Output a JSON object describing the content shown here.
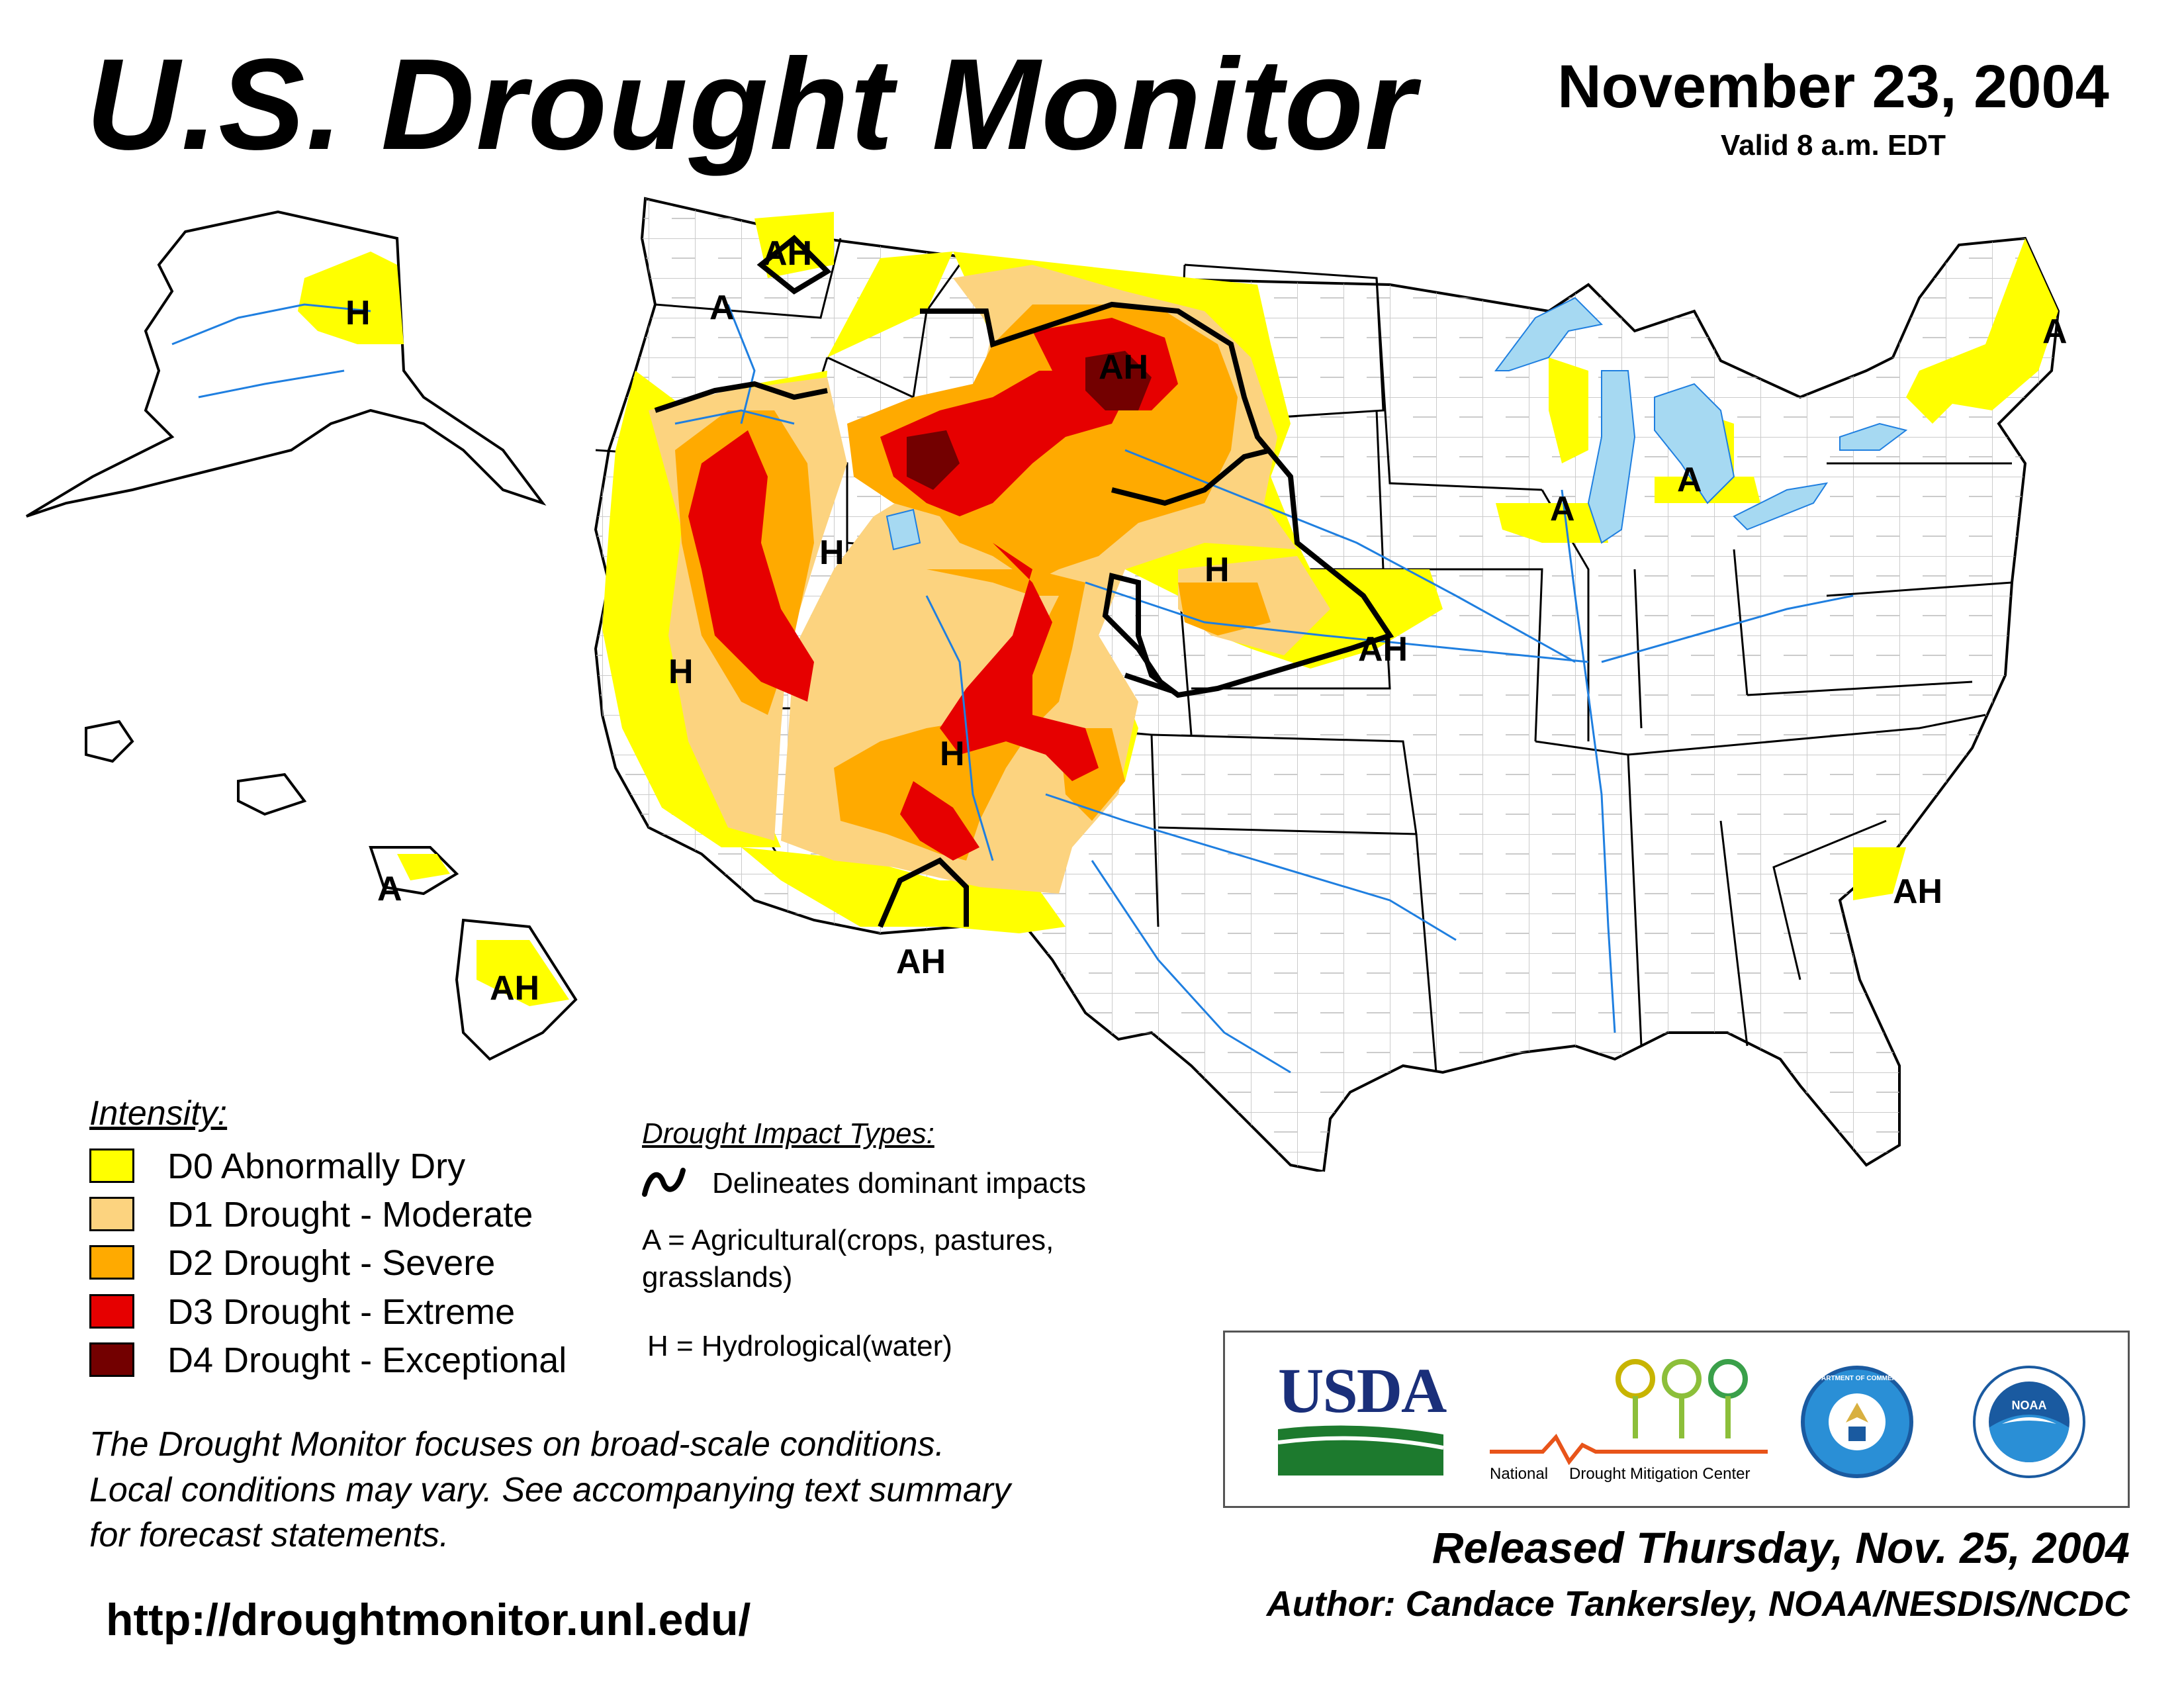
{
  "header": {
    "title": "U.S. Drought Monitor",
    "date": "November 23, 2004",
    "valid": "Valid 8 a.m. EDT"
  },
  "colors": {
    "D0": "#ffff00",
    "D1": "#fcd37f",
    "D2": "#ffaa00",
    "D3": "#e60000",
    "D4": "#730000",
    "water": "#a6d9f2",
    "river": "#1f7fe0",
    "county": "#a0a0a0"
  },
  "map": {
    "impact_labels": {
      "ak_h": "H",
      "wa_ah": "AH",
      "wa_a": "A",
      "mt_ah": "AH",
      "ut_h": "H",
      "ne_h": "H",
      "ks_ah": "AH",
      "ca_h": "H",
      "az_h": "H",
      "nm_ah": "AH",
      "wi_a": "A",
      "mi_a": "A",
      "me_a": "A",
      "sc_ah": "AH",
      "hi_a": "A",
      "hi_ah": "AH"
    }
  },
  "legend": {
    "title": "Intensity:",
    "items": [
      {
        "label": "D0 Abnormally Dry"
      },
      {
        "label": "D1 Drought - Moderate"
      },
      {
        "label": "D2 Drought - Severe"
      },
      {
        "label": "D3 Drought - Extreme"
      },
      {
        "label": "D4 Drought - Exceptional"
      }
    ]
  },
  "impacts": {
    "title": "Drought Impact Types:",
    "delineates": "Delineates dominant impacts",
    "ag_line1": "A = Agricultural(crops, pastures,",
    "ag_line2": "grasslands)",
    "hydro": "H = Hydrological(water)"
  },
  "note": {
    "line1": "The Drought Monitor focuses on broad-scale conditions.",
    "line2": "Local conditions may vary. See accompanying text summary",
    "line3": "for forecast statements."
  },
  "url": "http://droughtmonitor.unl.edu/",
  "logos": {
    "usda": "USDA",
    "ndmc_national": "National",
    "ndmc_name": "Drought Mitigation Center",
    "commerce": "DEPARTMENT OF COMMERCE",
    "noaa": "NOAA"
  },
  "footer": {
    "released": "Released Thursday, Nov. 25, 2004",
    "author": "Author: Candace Tankersley, NOAA/NESDIS/NCDC"
  }
}
